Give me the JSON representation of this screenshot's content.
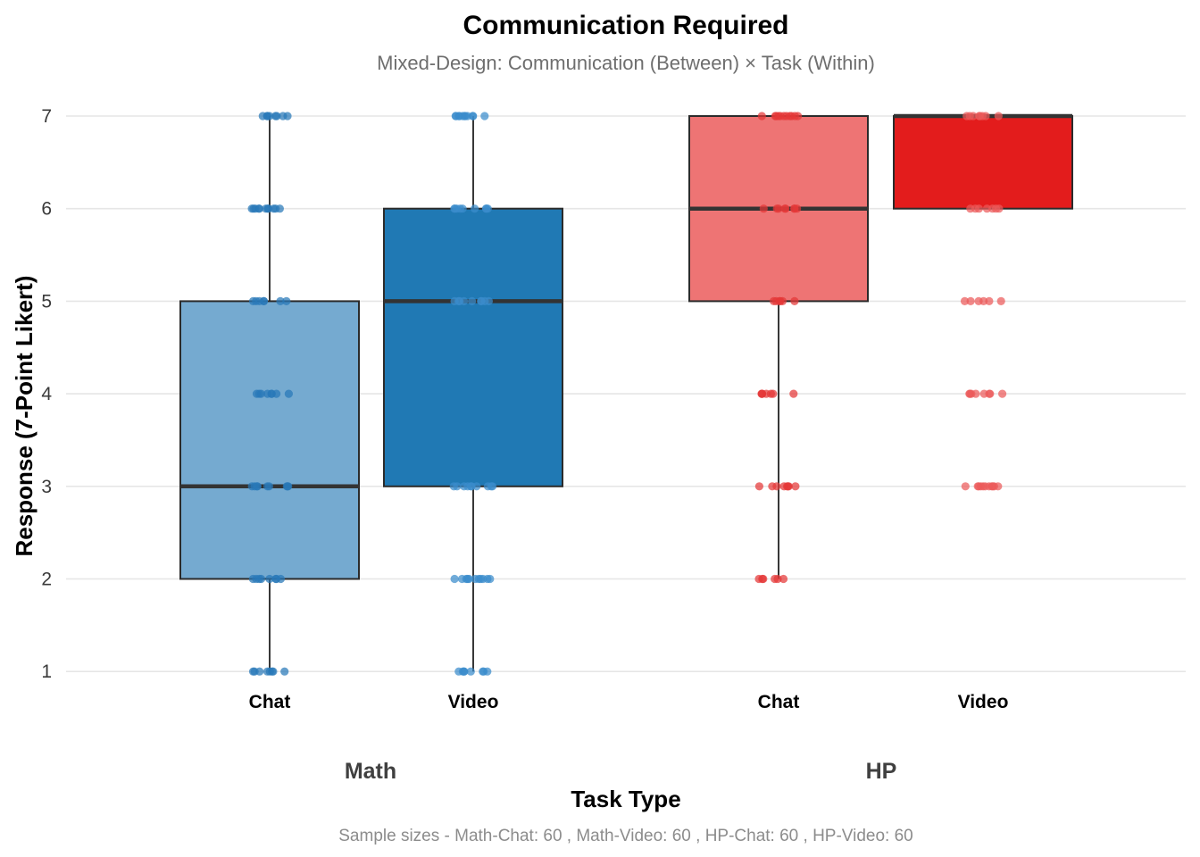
{
  "chart_data": {
    "type": "box",
    "title": "Communication Required",
    "subtitle": "Mixed-Design: Communication (Between) × Task (Within)",
    "xlabel": "Task Type",
    "ylabel": "Response (7-Point Likert)",
    "caption": "Sample sizes - Math-Chat: 60 , Math-Video: 60 , HP-Chat: 60 , HP-Video: 60",
    "ylim": [
      0.8,
      7.0
    ],
    "yticks": [
      1,
      2,
      3,
      4,
      5,
      6,
      7
    ],
    "grid": true,
    "legend": "none",
    "groups": [
      {
        "name": "Math",
        "boxes": [
          {
            "category": "Chat",
            "color": "#75AAD0",
            "point_color": "#2878B8",
            "whisker_low": 1,
            "q1": 2,
            "median": 3,
            "q3": 5,
            "whisker_high": 7,
            "points": [
              1,
              2,
              3,
              4,
              5,
              6,
              7
            ]
          },
          {
            "category": "Video",
            "color": "#2079B4",
            "point_color": "#3A8CCC",
            "whisker_low": 1,
            "q1": 3,
            "median": 5,
            "q3": 6,
            "whisker_high": 7,
            "points": [
              1,
              2,
              3,
              5,
              6,
              7
            ]
          }
        ]
      },
      {
        "name": "HP",
        "boxes": [
          {
            "category": "Chat",
            "color": "#EE7474",
            "point_color": "#E53838",
            "whisker_low": 2,
            "q1": 5,
            "median": 6,
            "q3": 7,
            "whisker_high": 7,
            "points": [
              2,
              3,
              4,
              5,
              6,
              7
            ]
          },
          {
            "category": "Video",
            "color": "#E31C1C",
            "point_color": "#EC5A5A",
            "whisker_low": 6,
            "q1": 6,
            "median": 7,
            "q3": 7,
            "whisker_high": 7,
            "points": [
              3,
              4,
              5,
              6,
              7
            ]
          }
        ]
      }
    ]
  }
}
